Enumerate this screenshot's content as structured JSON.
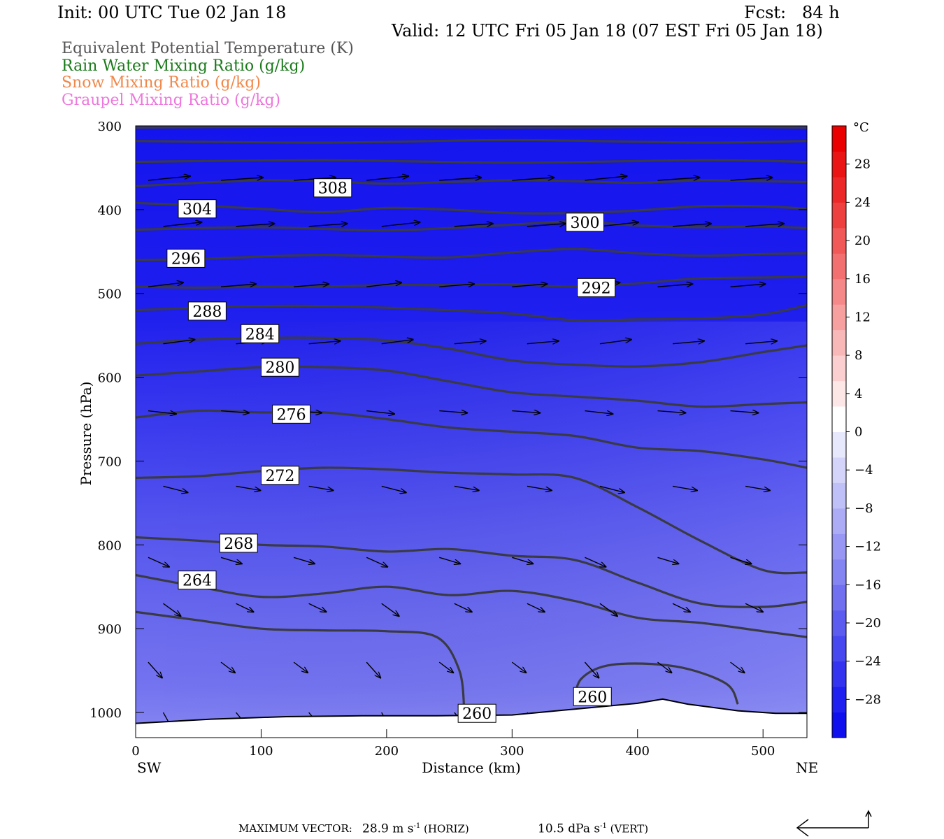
{
  "header": {
    "init": "Init: 00 UTC Tue 02 Jan 18",
    "fcst": "Fcst:   84 h",
    "valid": "Valid: 12 UTC Fri 05 Jan 18 (07 EST Fri 05 Jan 18)"
  },
  "legend": [
    {
      "text": "Equivalent Potential Temperature (K)",
      "color": "#555555"
    },
    {
      "text": "Rain Water Mixing Ratio (g/kg)",
      "color": "#1a7a1a"
    },
    {
      "text": "Snow Mixing Ratio (g/kg)",
      "color": "#f0884a"
    },
    {
      "text": "Graupel Mixing Ratio (g/kg)",
      "color": "#ee77dd"
    }
  ],
  "chart_data": {
    "type": "cross-section",
    "xlabel": "Distance (km)",
    "ylabel": "Pressure (hPa)",
    "xlim": [
      0,
      535
    ],
    "ylim": [
      1030,
      300
    ],
    "x_ticks": [
      0,
      100,
      200,
      300,
      400,
      500
    ],
    "y_ticks": [
      300,
      400,
      500,
      600,
      700,
      800,
      900,
      1000
    ],
    "x_left_label": "SW",
    "x_right_label": "NE",
    "colorbar": {
      "unit": "°C",
      "tick_labels": [
        "28",
        "24",
        "20",
        "16",
        "12",
        "8",
        "4",
        "0",
        "−4",
        "−8",
        "−12",
        "−16",
        "−20",
        "−24",
        "−28"
      ],
      "tick_values": [
        28,
        24,
        20,
        16,
        12,
        8,
        4,
        0,
        -4,
        -8,
        -12,
        -16,
        -20,
        -24,
        -28
      ],
      "range": [
        -32,
        32
      ],
      "colors": [
        "#1010ee",
        "#2020f0",
        "#3434f0",
        "#4848f0",
        "#5c5cf0",
        "#7070f0",
        "#8484f2",
        "#9898f4",
        "#acacf6",
        "#c0c0f8",
        "#d4d4fa",
        "#e8e8fc",
        "#ffffff",
        "#fde6e6",
        "#fbcfcf",
        "#f9b8b8",
        "#f7a0a0",
        "#f58888",
        "#f37070",
        "#f15858",
        "#ef4040",
        "#ed2828",
        "#eb1414",
        "#ea0000"
      ]
    },
    "theta_e_contours": [
      {
        "level": 308,
        "x": [
          0,
          50,
          100,
          150,
          200,
          250,
          300,
          350,
          400,
          450,
          500,
          535
        ],
        "p": [
          372,
          368,
          365,
          366,
          369,
          367,
          365,
          366,
          368,
          365,
          366,
          367
        ],
        "label_at": [
          142,
          374
        ]
      },
      {
        "level": 304,
        "x": [
          0,
          50,
          100,
          150,
          200,
          250,
          300,
          350,
          400,
          450,
          500,
          535
        ],
        "p": [
          424,
          422,
          421,
          423,
          425,
          422,
          418,
          414,
          419,
          421,
          420,
          422
        ],
        "label_at": [
          34,
          399
        ]
      },
      {
        "level": 300,
        "x": [
          0,
          50,
          100,
          150,
          200,
          250,
          300,
          350,
          400,
          450,
          500,
          535
        ],
        "p": [
          392,
          395,
          399,
          403,
          398,
          400,
          404,
          404,
          401,
          396,
          396,
          399
        ],
        "label_at": [
          343,
          415
        ]
      },
      {
        "level": 296,
        "x": [
          0,
          50,
          100,
          150,
          200,
          250,
          300,
          350,
          400,
          450,
          500,
          535
        ],
        "p": [
          460,
          459,
          456,
          454,
          456,
          457,
          451,
          447,
          452,
          455,
          453,
          452
        ],
        "label_at": [
          25,
          458
        ]
      },
      {
        "level": 292,
        "x": [
          0,
          50,
          100,
          150,
          200,
          250,
          300,
          350,
          400,
          450,
          500,
          535
        ],
        "p": [
          492,
          493,
          492,
          492,
          490,
          490,
          489,
          492,
          488,
          482,
          481,
          480
        ],
        "label_at": [
          352,
          493
        ]
      },
      {
        "level": 288,
        "x": [
          0,
          50,
          100,
          150,
          200,
          250,
          300,
          350,
          400,
          450,
          500,
          535
        ],
        "p": [
          520,
          517,
          515,
          515,
          517,
          520,
          524,
          532,
          531,
          530,
          525,
          514
        ],
        "label_at": [
          42,
          521
        ]
      },
      {
        "level": 284,
        "x": [
          0,
          50,
          100,
          150,
          200,
          250,
          300,
          350,
          400,
          450,
          500,
          535
        ],
        "p": [
          560,
          555,
          553,
          553,
          556,
          566,
          580,
          585,
          587,
          582,
          570,
          562
        ],
        "label_at": [
          84,
          548
        ]
      },
      {
        "level": 280,
        "x": [
          0,
          50,
          100,
          150,
          200,
          250,
          300,
          350,
          400,
          450,
          500,
          535
        ],
        "p": [
          598,
          593,
          588,
          588,
          592,
          605,
          618,
          623,
          628,
          635,
          632,
          630
        ],
        "label_at": [
          100,
          588
        ]
      },
      {
        "level": 276,
        "x": [
          0,
          50,
          100,
          150,
          200,
          250,
          300,
          350,
          400,
          450,
          500,
          535
        ],
        "p": [
          648,
          640,
          642,
          642,
          650,
          660,
          665,
          670,
          684,
          688,
          698,
          708
        ],
        "label_at": [
          109,
          644
        ]
      },
      {
        "level": 272,
        "x": [
          0,
          50,
          100,
          150,
          200,
          250,
          300,
          350,
          400,
          450,
          500,
          535
        ],
        "p": [
          720,
          718,
          712,
          708,
          710,
          714,
          716,
          720,
          755,
          795,
          830,
          833
        ],
        "label_at": [
          100,
          717
        ]
      },
      {
        "level": 268,
        "x": [
          0,
          50,
          100,
          150,
          200,
          250,
          300,
          350,
          400,
          450,
          500,
          535
        ],
        "p": [
          791,
          795,
          800,
          802,
          808,
          805,
          813,
          818,
          845,
          870,
          874,
          868
        ],
        "label_at": [
          67,
          798
        ]
      },
      {
        "level": 264,
        "x": [
          0,
          50,
          100,
          150,
          200,
          250,
          300,
          350,
          400,
          450,
          500,
          535
        ],
        "p": [
          836,
          850,
          862,
          858,
          850,
          860,
          855,
          867,
          887,
          893,
          903,
          910
        ],
        "label_at": [
          34,
          842
        ]
      },
      {
        "level": 260,
        "x": [
          0,
          50,
          100,
          150,
          200,
          240,
          258,
          262
        ],
        "p": [
          880,
          890,
          900,
          902,
          903,
          910,
          950,
          1000
        ],
        "label_at": [
          257,
          1001
        ]
      },
      {
        "level": 260,
        "x": [
          350,
          355,
          380,
          430,
          470,
          480
        ],
        "p": [
          990,
          960,
          943,
          945,
          965,
          990
        ],
        "label_at": [
          349,
          981
        ]
      }
    ],
    "wind_vectors_note": "Cross-section wind vectors shown as arrows; maximum vector reported below",
    "terrain": {
      "x": [
        0,
        60,
        120,
        180,
        240,
        300,
        350,
        400,
        420,
        440,
        480,
        510,
        535
      ],
      "p": [
        1013,
        1008,
        1005,
        1004,
        1004,
        1003,
        996,
        989,
        984,
        990,
        998,
        1001,
        1001
      ]
    }
  },
  "footer": {
    "max_vector_label": "MAXIMUM VECTOR:",
    "horiz_value": "28.9 m s",
    "horiz_exp": "-1",
    "horiz_suffix": " (HORIZ)",
    "vert_value": "10.5 dPa s",
    "vert_exp": "-1",
    "vert_suffix": " (VERT)"
  }
}
